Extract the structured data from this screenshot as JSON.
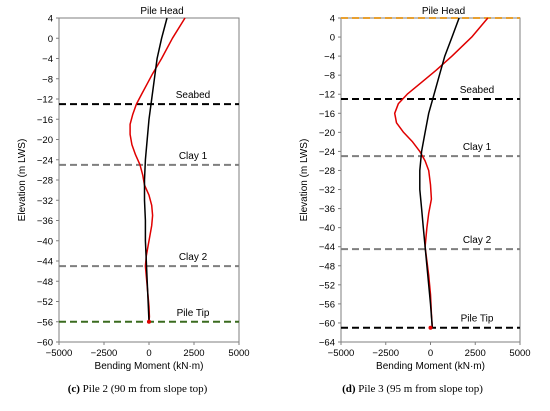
{
  "chart_data": [
    {
      "type": "line",
      "xlabel": "Bending Moment (kN·m)",
      "ylabel": "Elevation (m LWS)",
      "xlim": [
        -5000,
        5000
      ],
      "ylim": [
        -60,
        4
      ],
      "xticks": [
        -5000,
        -2500,
        0,
        2500,
        5000
      ],
      "yticks": [
        4,
        0,
        -4,
        -8,
        -12,
        -16,
        -20,
        -24,
        -28,
        -32,
        -36,
        -40,
        -44,
        -48,
        -52,
        -56,
        -60
      ],
      "grid": false,
      "caption_letter": "(c)",
      "caption_text": "Pile 2 (90 m from slope top)",
      "annotations": [
        {
          "text": "Pile Head",
          "elevation": 4
        },
        {
          "text": "Seabed",
          "elevation": -13,
          "line_color": "#000000"
        },
        {
          "text": "Clay 1",
          "elevation": -25,
          "line_color": "#7f7f7f"
        },
        {
          "text": "Clay 2",
          "elevation": -45,
          "line_color": "#7f7f7f"
        },
        {
          "text": "Pile Tip",
          "elevation": -56,
          "line_color": "#3a6b1f"
        }
      ],
      "series": [
        {
          "color": "#e00000",
          "points": [
            [
              2000,
              4
            ],
            [
              1300,
              0
            ],
            [
              700,
              -4
            ],
            [
              200,
              -7
            ],
            [
              -100,
              -9
            ],
            [
              -400,
              -11
            ],
            [
              -700,
              -13
            ],
            [
              -900,
              -15
            ],
            [
              -1050,
              -17
            ],
            [
              -1050,
              -19
            ],
            [
              -950,
              -21
            ],
            [
              -750,
              -23
            ],
            [
              -500,
              -25
            ],
            [
              -350,
              -27
            ],
            [
              -250,
              -29
            ],
            [
              0,
              -31
            ],
            [
              150,
              -33
            ],
            [
              200,
              -35
            ],
            [
              150,
              -37
            ],
            [
              50,
              -39
            ],
            [
              -50,
              -41
            ],
            [
              -150,
              -43
            ],
            [
              -200,
              -45
            ],
            [
              -150,
              -47
            ],
            [
              -100,
              -49
            ],
            [
              -50,
              -51
            ],
            [
              0,
              -53
            ],
            [
              20,
              -55
            ],
            [
              0,
              -56
            ]
          ]
        },
        {
          "color": "#000000",
          "points": [
            [
              1000,
              4
            ],
            [
              700,
              0
            ],
            [
              450,
              -4
            ],
            [
              300,
              -8
            ],
            [
              150,
              -12
            ],
            [
              0,
              -16
            ],
            [
              -100,
              -20
            ],
            [
              -200,
              -24
            ],
            [
              -250,
              -28
            ],
            [
              -250,
              -32
            ],
            [
              -200,
              -36
            ],
            [
              -200,
              -40
            ],
            [
              -150,
              -44
            ],
            [
              -100,
              -48
            ],
            [
              -50,
              -52
            ],
            [
              0,
              -56
            ]
          ]
        }
      ]
    },
    {
      "type": "line",
      "xlabel": "Bending Moment (kN·m)",
      "ylabel": "Elevation (m LWS)",
      "xlim": [
        -5000,
        5000
      ],
      "ylim": [
        -64,
        4
      ],
      "xticks": [
        -5000,
        -2500,
        0,
        2500,
        5000
      ],
      "yticks": [
        4,
        0,
        -4,
        -8,
        -12,
        -16,
        -20,
        -24,
        -28,
        -32,
        -36,
        -40,
        -44,
        -48,
        -52,
        -56,
        -60,
        -64
      ],
      "grid": false,
      "caption_letter": "(d)",
      "caption_text": "Pile 3 (95 m from slope top)",
      "annotations": [
        {
          "text": "Pile Head",
          "elevation": 4,
          "line_color": "#e8a030"
        },
        {
          "text": "Seabed",
          "elevation": -13,
          "line_color": "#000000"
        },
        {
          "text": "Clay 1",
          "elevation": -25,
          "line_color": "#7f7f7f"
        },
        {
          "text": "Clay 2",
          "elevation": -44.5,
          "line_color": "#7f7f7f"
        },
        {
          "text": "Pile Tip",
          "elevation": -61,
          "line_color": "#000000"
        }
      ],
      "series": [
        {
          "color": "#e00000",
          "points": [
            [
              3200,
              4
            ],
            [
              2300,
              0
            ],
            [
              1200,
              -4
            ],
            [
              300,
              -7
            ],
            [
              -500,
              -9.5
            ],
            [
              -1300,
              -12
            ],
            [
              -1800,
              -14
            ],
            [
              -2000,
              -16
            ],
            [
              -1900,
              -18
            ],
            [
              -1500,
              -20
            ],
            [
              -1000,
              -22
            ],
            [
              -600,
              -24
            ],
            [
              -300,
              -26
            ],
            [
              -100,
              -28
            ],
            [
              0,
              -31
            ],
            [
              50,
              -34
            ],
            [
              -100,
              -37
            ],
            [
              -200,
              -40
            ],
            [
              -250,
              -42
            ],
            [
              -300,
              -44
            ],
            [
              -200,
              -47
            ],
            [
              -100,
              -50
            ],
            [
              0,
              -54
            ],
            [
              50,
              -58
            ],
            [
              100,
              -61
            ]
          ]
        },
        {
          "color": "#000000",
          "points": [
            [
              1600,
              4
            ],
            [
              1200,
              0
            ],
            [
              800,
              -4
            ],
            [
              500,
              -8
            ],
            [
              200,
              -12
            ],
            [
              -100,
              -16
            ],
            [
              -300,
              -20
            ],
            [
              -500,
              -24
            ],
            [
              -600,
              -28
            ],
            [
              -600,
              -32
            ],
            [
              -500,
              -36
            ],
            [
              -400,
              -40
            ],
            [
              -300,
              -44
            ],
            [
              -200,
              -48
            ],
            [
              -100,
              -52
            ],
            [
              0,
              -56
            ],
            [
              100,
              -61
            ]
          ]
        }
      ]
    }
  ]
}
